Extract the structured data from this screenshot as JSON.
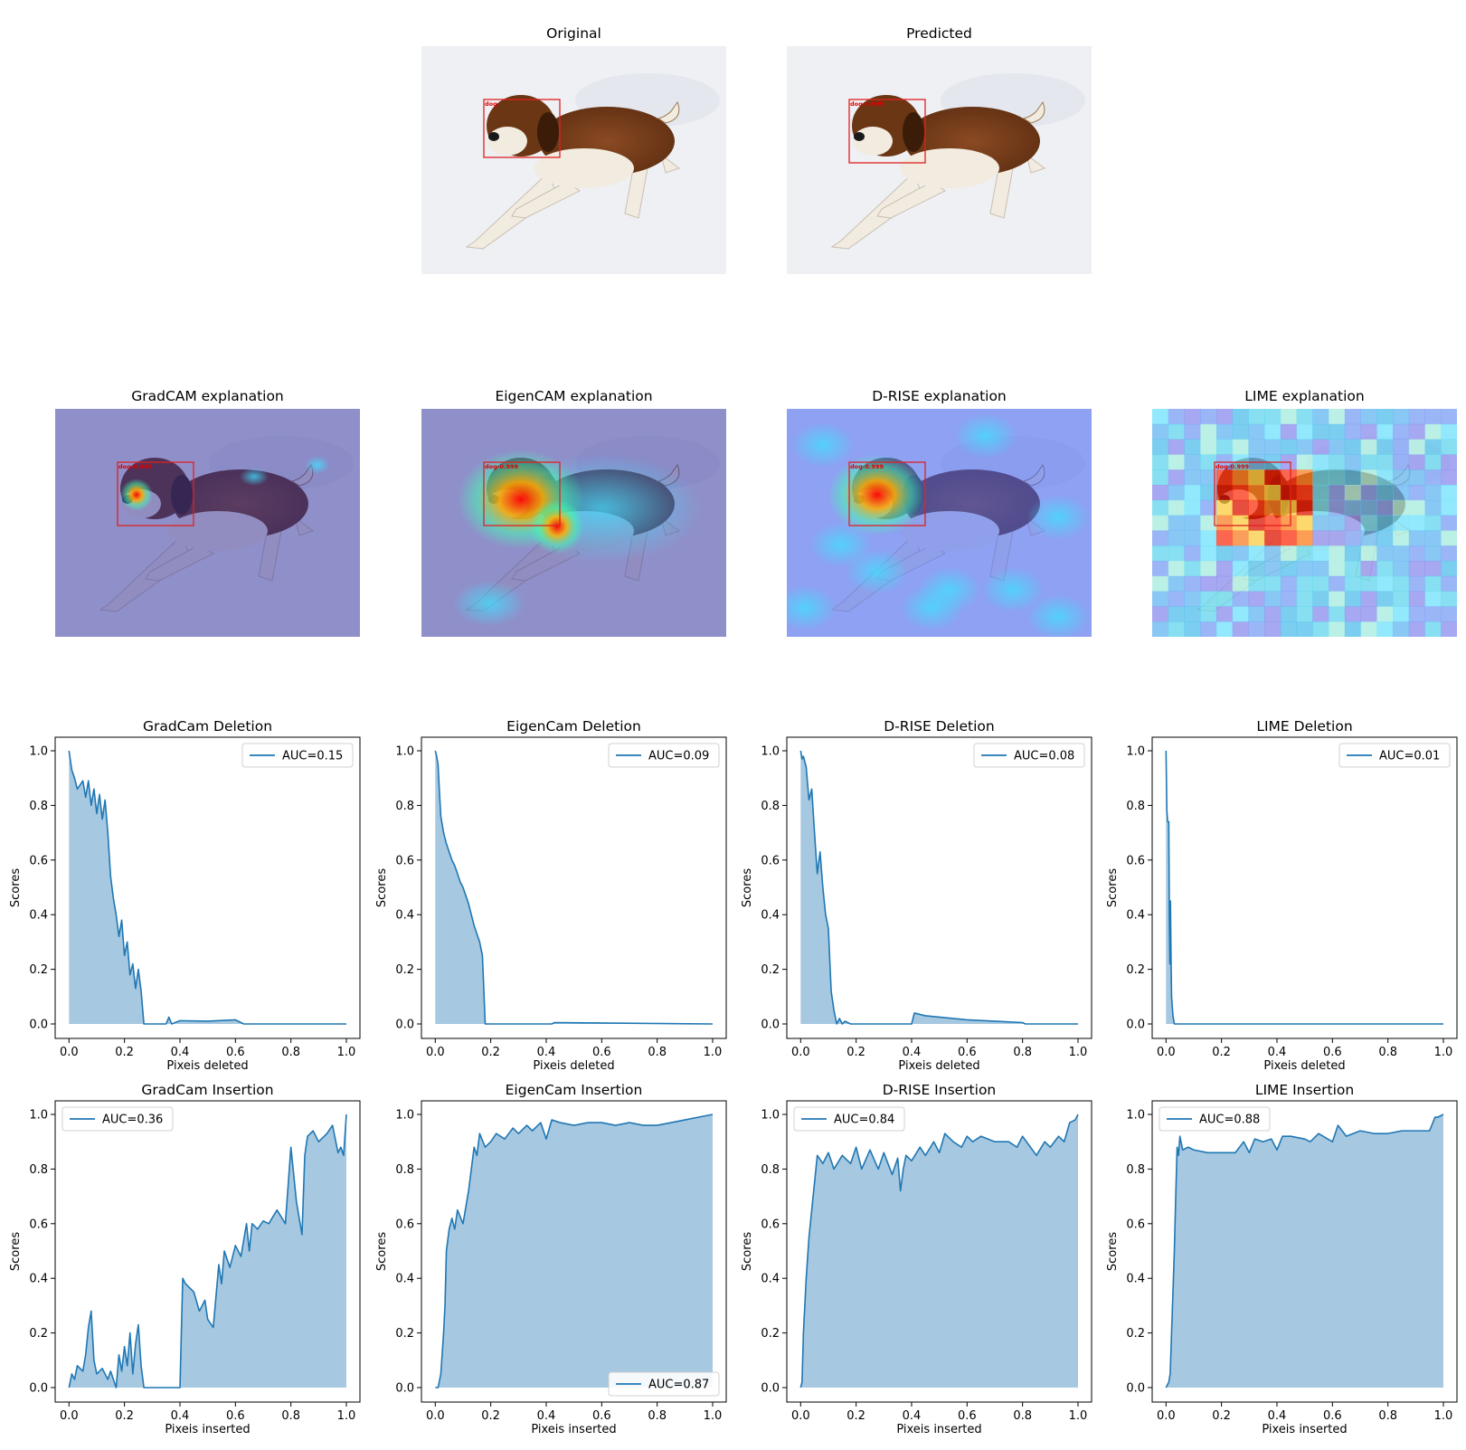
{
  "images": [
    {
      "title": "Original",
      "box_label": "dog",
      "overlay": "none"
    },
    {
      "title": "Predicted",
      "box_label": "dog-0.999",
      "overlay": "none"
    },
    {
      "title": "GradCAM explanation",
      "box_label": "dog-0.999",
      "overlay": "gradcam"
    },
    {
      "title": "EigenCAM explanation",
      "box_label": "dog-0.999",
      "overlay": "eigencam"
    },
    {
      "title": "D-RISE explanation",
      "box_label": "dog-0.999",
      "overlay": "drise"
    },
    {
      "title": "LIME explanation",
      "box_label": "dog-0.999",
      "overlay": "lime"
    }
  ],
  "colors": {
    "line": "#1f77b4",
    "fill": "#a6c8e0",
    "box": "#e02020",
    "snow": "#eef0f4",
    "dog_brown": "#7a3e1c",
    "dog_white": "#f2ebe0"
  },
  "chart_data": [
    {
      "type": "area",
      "title": "GradCam Deletion",
      "xlabel": "Pixeis deleted",
      "ylabel": "Scores",
      "xlim": [
        0,
        1
      ],
      "ylim": [
        0,
        1
      ],
      "xticks": [
        "0.0",
        "0.2",
        "0.4",
        "0.6",
        "0.8",
        "1.0"
      ],
      "yticks": [
        "0.0",
        "0.2",
        "0.4",
        "0.6",
        "0.8",
        "1.0"
      ],
      "legend": "AUC=0.15",
      "legend_loc": "upper right",
      "x": [
        0,
        0.01,
        0.02,
        0.03,
        0.05,
        0.06,
        0.07,
        0.08,
        0.09,
        0.1,
        0.11,
        0.12,
        0.13,
        0.14,
        0.15,
        0.16,
        0.17,
        0.18,
        0.19,
        0.2,
        0.21,
        0.22,
        0.23,
        0.24,
        0.25,
        0.26,
        0.27,
        0.35,
        0.36,
        0.37,
        0.4,
        0.5,
        0.6,
        0.62,
        0.63,
        1.0
      ],
      "y": [
        1.0,
        0.93,
        0.9,
        0.86,
        0.89,
        0.83,
        0.89,
        0.8,
        0.86,
        0.77,
        0.84,
        0.75,
        0.82,
        0.7,
        0.54,
        0.46,
        0.4,
        0.32,
        0.38,
        0.25,
        0.3,
        0.18,
        0.22,
        0.13,
        0.2,
        0.12,
        0.0,
        0.0,
        0.025,
        0.0,
        0.012,
        0.01,
        0.015,
        0.005,
        0.0,
        0.0
      ]
    },
    {
      "type": "area",
      "title": "EigenCam Deletion",
      "xlabel": "Pixeis deleted",
      "ylabel": "Scores",
      "xlim": [
        0,
        1
      ],
      "ylim": [
        0,
        1
      ],
      "xticks": [
        "0.0",
        "0.2",
        "0.4",
        "0.6",
        "0.8",
        "1.0"
      ],
      "yticks": [
        "0.0",
        "0.2",
        "0.4",
        "0.6",
        "0.8",
        "1.0"
      ],
      "legend": "AUC=0.09",
      "legend_loc": "upper right",
      "x": [
        0,
        0.005,
        0.01,
        0.015,
        0.02,
        0.03,
        0.04,
        0.05,
        0.06,
        0.07,
        0.08,
        0.09,
        0.1,
        0.11,
        0.12,
        0.13,
        0.14,
        0.15,
        0.16,
        0.17,
        0.18,
        0.2,
        0.42,
        0.43,
        1.0
      ],
      "y": [
        1.0,
        0.98,
        0.95,
        0.85,
        0.76,
        0.7,
        0.66,
        0.63,
        0.6,
        0.58,
        0.55,
        0.52,
        0.5,
        0.47,
        0.44,
        0.4,
        0.36,
        0.33,
        0.3,
        0.25,
        0.0,
        0.0,
        0.0,
        0.005,
        0.0
      ]
    },
    {
      "type": "area",
      "title": "D-RISE Deletion",
      "xlabel": "Pixeis deleted",
      "ylabel": "Scores",
      "xlim": [
        0,
        1
      ],
      "ylim": [
        0,
        1
      ],
      "xticks": [
        "0.0",
        "0.2",
        "0.4",
        "0.6",
        "0.8",
        "1.0"
      ],
      "yticks": [
        "0.0",
        "0.2",
        "0.4",
        "0.6",
        "0.8",
        "1.0"
      ],
      "legend": "AUC=0.08",
      "legend_loc": "upper right",
      "x": [
        0,
        0.005,
        0.01,
        0.02,
        0.03,
        0.04,
        0.05,
        0.06,
        0.07,
        0.08,
        0.09,
        0.1,
        0.11,
        0.12,
        0.13,
        0.14,
        0.15,
        0.16,
        0.18,
        0.4,
        0.41,
        0.45,
        0.5,
        0.55,
        0.6,
        0.7,
        0.8,
        0.81,
        1.0
      ],
      "y": [
        1.0,
        0.97,
        0.98,
        0.94,
        0.82,
        0.86,
        0.7,
        0.55,
        0.63,
        0.5,
        0.4,
        0.35,
        0.12,
        0.05,
        0.0,
        0.02,
        0.0,
        0.01,
        0.0,
        0.0,
        0.04,
        0.03,
        0.025,
        0.02,
        0.015,
        0.01,
        0.005,
        0.0,
        0.0
      ]
    },
    {
      "type": "area",
      "title": "LIME Deletion",
      "xlabel": "Pixeis deleted",
      "ylabel": "Scores",
      "xlim": [
        0,
        1
      ],
      "ylim": [
        0,
        1
      ],
      "xticks": [
        "0.0",
        "0.2",
        "0.4",
        "0.6",
        "0.8",
        "1.0"
      ],
      "yticks": [
        "0.0",
        "0.2",
        "0.4",
        "0.6",
        "0.8",
        "1.0"
      ],
      "legend": "AUC=0.01",
      "legend_loc": "upper right",
      "x": [
        0,
        0.003,
        0.006,
        0.01,
        0.012,
        0.014,
        0.016,
        0.018,
        0.02,
        0.025,
        0.03,
        1.0
      ],
      "y": [
        1.0,
        0.78,
        0.74,
        0.74,
        0.4,
        0.22,
        0.45,
        0.25,
        0.1,
        0.03,
        0.0,
        0.0
      ]
    },
    {
      "type": "area",
      "title": "GradCam Insertion",
      "xlabel": "Pixeis inserted",
      "ylabel": "Scores",
      "xlim": [
        0,
        1
      ],
      "ylim": [
        0,
        1
      ],
      "xticks": [
        "0.0",
        "0.2",
        "0.4",
        "0.6",
        "0.8",
        "1.0"
      ],
      "yticks": [
        "0.0",
        "0.2",
        "0.4",
        "0.6",
        "0.8",
        "1.0"
      ],
      "legend": "AUC=0.36",
      "legend_loc": "upper left",
      "x": [
        0,
        0.01,
        0.02,
        0.03,
        0.05,
        0.06,
        0.07,
        0.08,
        0.09,
        0.1,
        0.12,
        0.14,
        0.15,
        0.17,
        0.18,
        0.19,
        0.2,
        0.21,
        0.22,
        0.23,
        0.24,
        0.25,
        0.26,
        0.27,
        0.3,
        0.4,
        0.41,
        0.42,
        0.45,
        0.47,
        0.49,
        0.5,
        0.52,
        0.54,
        0.55,
        0.56,
        0.58,
        0.6,
        0.62,
        0.64,
        0.65,
        0.66,
        0.68,
        0.7,
        0.72,
        0.75,
        0.78,
        0.8,
        0.82,
        0.84,
        0.85,
        0.86,
        0.88,
        0.9,
        0.93,
        0.95,
        0.97,
        0.98,
        0.99,
        1.0
      ],
      "y": [
        0.0,
        0.05,
        0.03,
        0.08,
        0.06,
        0.12,
        0.22,
        0.28,
        0.1,
        0.05,
        0.07,
        0.03,
        0.06,
        0.0,
        0.12,
        0.06,
        0.15,
        0.08,
        0.2,
        0.05,
        0.16,
        0.23,
        0.08,
        0.0,
        0.0,
        0.0,
        0.4,
        0.38,
        0.35,
        0.28,
        0.32,
        0.25,
        0.22,
        0.45,
        0.38,
        0.5,
        0.44,
        0.52,
        0.48,
        0.6,
        0.5,
        0.6,
        0.58,
        0.61,
        0.6,
        0.65,
        0.6,
        0.88,
        0.68,
        0.56,
        0.85,
        0.92,
        0.94,
        0.9,
        0.93,
        0.96,
        0.86,
        0.88,
        0.85,
        1.0
      ]
    },
    {
      "type": "area",
      "title": "EigenCam Insertion",
      "xlabel": "Pixeis inserted",
      "ylabel": "Scores",
      "xlim": [
        0,
        1
      ],
      "ylim": [
        0,
        1
      ],
      "xticks": [
        "0.0",
        "0.2",
        "0.4",
        "0.6",
        "0.8",
        "1.0"
      ],
      "yticks": [
        "0.0",
        "0.2",
        "0.4",
        "0.6",
        "0.8",
        "1.0"
      ],
      "legend": "AUC=0.87",
      "legend_loc": "lower right",
      "x": [
        0,
        0.01,
        0.02,
        0.03,
        0.035,
        0.04,
        0.05,
        0.06,
        0.07,
        0.08,
        0.1,
        0.12,
        0.14,
        0.15,
        0.16,
        0.18,
        0.2,
        0.22,
        0.25,
        0.28,
        0.3,
        0.33,
        0.35,
        0.38,
        0.4,
        0.42,
        0.45,
        0.5,
        0.55,
        0.6,
        0.65,
        0.7,
        0.75,
        0.8,
        0.85,
        0.9,
        0.95,
        1.0
      ],
      "y": [
        0.0,
        0.0,
        0.05,
        0.2,
        0.3,
        0.5,
        0.58,
        0.62,
        0.58,
        0.65,
        0.6,
        0.72,
        0.88,
        0.85,
        0.93,
        0.88,
        0.9,
        0.93,
        0.91,
        0.95,
        0.93,
        0.96,
        0.94,
        0.97,
        0.91,
        0.98,
        0.97,
        0.96,
        0.97,
        0.97,
        0.96,
        0.97,
        0.96,
        0.96,
        0.97,
        0.98,
        0.99,
        1.0
      ]
    },
    {
      "type": "area",
      "title": "D-RISE Insertion",
      "xlabel": "Pixeis inserted",
      "ylabel": "Scores",
      "xlim": [
        0,
        1
      ],
      "ylim": [
        0,
        1
      ],
      "xticks": [
        "0.0",
        "0.2",
        "0.4",
        "0.6",
        "0.8",
        "1.0"
      ],
      "yticks": [
        "0.0",
        "0.2",
        "0.4",
        "0.6",
        "0.8",
        "1.0"
      ],
      "legend": "AUC=0.84",
      "legend_loc": "upper left",
      "x": [
        0,
        0.005,
        0.01,
        0.02,
        0.03,
        0.04,
        0.05,
        0.06,
        0.08,
        0.1,
        0.12,
        0.15,
        0.18,
        0.2,
        0.22,
        0.25,
        0.28,
        0.3,
        0.33,
        0.35,
        0.36,
        0.37,
        0.38,
        0.4,
        0.43,
        0.45,
        0.48,
        0.5,
        0.52,
        0.55,
        0.58,
        0.6,
        0.62,
        0.65,
        0.7,
        0.75,
        0.78,
        0.8,
        0.85,
        0.88,
        0.9,
        0.93,
        0.95,
        0.97,
        0.99,
        1.0
      ],
      "y": [
        0.0,
        0.02,
        0.2,
        0.4,
        0.55,
        0.65,
        0.75,
        0.85,
        0.82,
        0.86,
        0.8,
        0.85,
        0.82,
        0.88,
        0.8,
        0.87,
        0.8,
        0.86,
        0.78,
        0.84,
        0.72,
        0.8,
        0.85,
        0.83,
        0.88,
        0.85,
        0.9,
        0.86,
        0.93,
        0.9,
        0.88,
        0.92,
        0.9,
        0.92,
        0.9,
        0.9,
        0.88,
        0.92,
        0.85,
        0.9,
        0.88,
        0.92,
        0.9,
        0.97,
        0.98,
        1.0
      ]
    },
    {
      "type": "area",
      "title": "LIME Insertion",
      "xlabel": "Pixeis inserted",
      "ylabel": "Scores",
      "xlim": [
        0,
        1
      ],
      "ylim": [
        0,
        1
      ],
      "xticks": [
        "0.0",
        "0.2",
        "0.4",
        "0.6",
        "0.8",
        "1.0"
      ],
      "yticks": [
        "0.0",
        "0.2",
        "0.4",
        "0.6",
        "0.8",
        "1.0"
      ],
      "legend": "AUC=0.88",
      "legend_loc": "upper left",
      "x": [
        0,
        0.01,
        0.015,
        0.02,
        0.025,
        0.03,
        0.035,
        0.04,
        0.045,
        0.05,
        0.06,
        0.08,
        0.1,
        0.15,
        0.2,
        0.25,
        0.28,
        0.3,
        0.32,
        0.35,
        0.38,
        0.4,
        0.42,
        0.45,
        0.5,
        0.52,
        0.55,
        0.6,
        0.62,
        0.65,
        0.7,
        0.75,
        0.8,
        0.85,
        0.9,
        0.95,
        0.97,
        0.98,
        1.0
      ],
      "y": [
        0.0,
        0.02,
        0.05,
        0.2,
        0.35,
        0.5,
        0.7,
        0.88,
        0.85,
        0.92,
        0.87,
        0.88,
        0.87,
        0.86,
        0.86,
        0.86,
        0.9,
        0.86,
        0.91,
        0.9,
        0.91,
        0.87,
        0.92,
        0.92,
        0.91,
        0.9,
        0.93,
        0.9,
        0.96,
        0.92,
        0.94,
        0.93,
        0.93,
        0.94,
        0.94,
        0.94,
        0.99,
        0.99,
        1.0
      ]
    }
  ]
}
